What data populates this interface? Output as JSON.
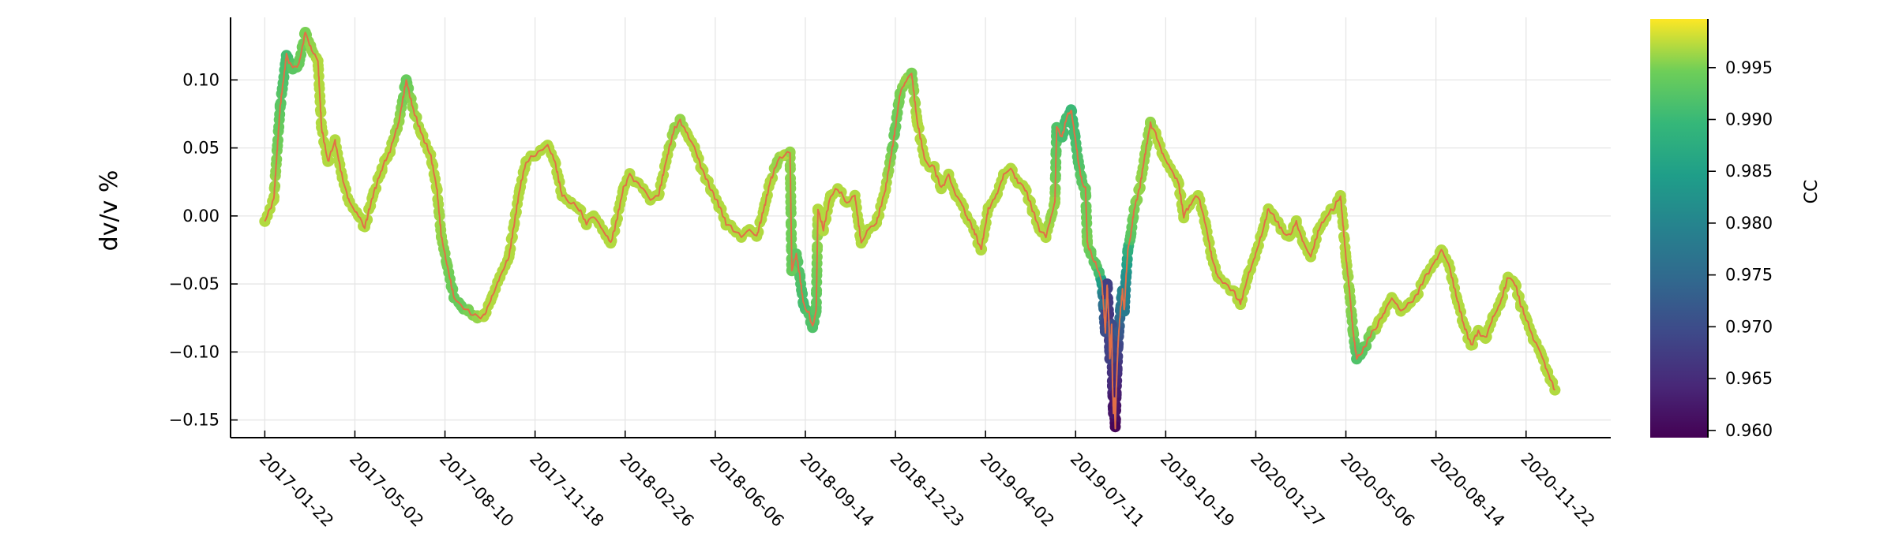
{
  "chart_data": {
    "type": "scatter",
    "title": "",
    "xlabel": "",
    "ylabel": "dv/v %",
    "x_tick_labels": [
      "2017-01-22",
      "2017-05-02",
      "2017-08-10",
      "2017-11-18",
      "2018-02-26",
      "2018-06-06",
      "2018-09-14",
      "2018-12-23",
      "2019-04-02",
      "2019-07-11",
      "2019-10-19",
      "2020-01-27",
      "2020-05-06",
      "2020-08-14",
      "2020-11-22"
    ],
    "x_range": [
      "2016-12-15",
      "2021-02-24"
    ],
    "y_ticks": [
      0.1,
      0.05,
      0.0,
      -0.05,
      -0.1,
      -0.15
    ],
    "y_tick_labels": [
      "0.10",
      "0.05",
      "0.00",
      "−0.05",
      "−0.10",
      "−0.15"
    ],
    "ylim": [
      -0.163,
      0.146
    ],
    "grid": true,
    "line_color": "#e26f46",
    "colorbar": {
      "label": "CC",
      "colormap": "viridis",
      "range": [
        0.9593,
        0.9997
      ],
      "ticks": [
        0.96,
        0.965,
        0.97,
        0.975,
        0.98,
        0.985,
        0.99,
        0.995
      ],
      "tick_labels": [
        "0.960",
        "0.965",
        "0.970",
        "0.975",
        "0.980",
        "0.985",
        "0.990",
        "0.995"
      ]
    },
    "series": [
      {
        "name": "dv/v",
        "points": [
          [
            "2017-01-22",
            -0.004,
            0.997
          ],
          [
            "2017-02-01",
            0.012,
            0.997
          ],
          [
            "2017-02-08",
            0.08,
            0.993
          ],
          [
            "2017-02-15",
            0.118,
            0.991
          ],
          [
            "2017-02-22",
            0.108,
            0.993
          ],
          [
            "2017-03-01",
            0.112,
            0.994
          ],
          [
            "2017-03-08",
            0.135,
            0.995
          ],
          [
            "2017-03-15",
            0.122,
            0.996
          ],
          [
            "2017-03-22",
            0.114,
            0.997
          ],
          [
            "2017-03-26",
            0.065,
            0.997
          ],
          [
            "2017-04-02",
            0.04,
            0.997
          ],
          [
            "2017-04-10",
            0.055,
            0.997
          ],
          [
            "2017-04-18",
            0.028,
            0.997
          ],
          [
            "2017-04-26",
            0.01,
            0.997
          ],
          [
            "2017-05-06",
            0.0,
            0.997
          ],
          [
            "2017-05-13",
            -0.008,
            0.997
          ],
          [
            "2017-05-22",
            0.015,
            0.997
          ],
          [
            "2017-06-01",
            0.035,
            0.997
          ],
          [
            "2017-06-10",
            0.048,
            0.997
          ],
          [
            "2017-06-20",
            0.07,
            0.996
          ],
          [
            "2017-06-28",
            0.1,
            0.994
          ],
          [
            "2017-07-05",
            0.08,
            0.996
          ],
          [
            "2017-07-15",
            0.06,
            0.997
          ],
          [
            "2017-07-25",
            0.045,
            0.997
          ],
          [
            "2017-08-01",
            0.02,
            0.997
          ],
          [
            "2017-08-06",
            -0.015,
            0.996
          ],
          [
            "2017-08-12",
            -0.035,
            0.995
          ],
          [
            "2017-08-20",
            -0.06,
            0.994
          ],
          [
            "2017-08-28",
            -0.066,
            0.994
          ],
          [
            "2017-09-05",
            -0.07,
            0.995
          ],
          [
            "2017-09-15",
            -0.075,
            0.996
          ],
          [
            "2017-09-22",
            -0.074,
            0.997
          ],
          [
            "2017-10-01",
            -0.06,
            0.997
          ],
          [
            "2017-10-10",
            -0.045,
            0.997
          ],
          [
            "2017-10-20",
            -0.03,
            0.997
          ],
          [
            "2017-10-26",
            -0.005,
            0.997
          ],
          [
            "2017-11-01",
            0.02,
            0.997
          ],
          [
            "2017-11-08",
            0.04,
            0.997
          ],
          [
            "2017-11-16",
            0.044,
            0.997
          ],
          [
            "2017-11-24",
            0.048,
            0.997
          ],
          [
            "2017-12-02",
            0.052,
            0.997
          ],
          [
            "2017-12-10",
            0.04,
            0.997
          ],
          [
            "2017-12-18",
            0.015,
            0.997
          ],
          [
            "2017-12-28",
            0.01,
            0.997
          ],
          [
            "2018-01-06",
            0.005,
            0.997
          ],
          [
            "2018-01-14",
            -0.005,
            0.997
          ],
          [
            "2018-01-22",
            0.0,
            0.997
          ],
          [
            "2018-02-01",
            -0.01,
            0.997
          ],
          [
            "2018-02-10",
            -0.02,
            0.997
          ],
          [
            "2018-02-16",
            -0.005,
            0.997
          ],
          [
            "2018-02-24",
            0.02,
            0.997
          ],
          [
            "2018-03-03",
            0.03,
            0.997
          ],
          [
            "2018-03-10",
            0.025,
            0.997
          ],
          [
            "2018-03-18",
            0.02,
            0.997
          ],
          [
            "2018-03-26",
            0.012,
            0.997
          ],
          [
            "2018-04-04",
            0.015,
            0.997
          ],
          [
            "2018-04-14",
            0.045,
            0.997
          ],
          [
            "2018-04-22",
            0.065,
            0.996
          ],
          [
            "2018-04-28",
            0.07,
            0.996
          ],
          [
            "2018-05-06",
            0.06,
            0.997
          ],
          [
            "2018-05-14",
            0.05,
            0.997
          ],
          [
            "2018-05-22",
            0.035,
            0.997
          ],
          [
            "2018-06-01",
            0.02,
            0.997
          ],
          [
            "2018-06-10",
            0.008,
            0.997
          ],
          [
            "2018-06-18",
            -0.005,
            0.997
          ],
          [
            "2018-06-26",
            -0.01,
            0.997
          ],
          [
            "2018-07-05",
            -0.015,
            0.997
          ],
          [
            "2018-07-14",
            -0.01,
            0.997
          ],
          [
            "2018-07-22",
            -0.015,
            0.997
          ],
          [
            "2018-07-30",
            0.005,
            0.997
          ],
          [
            "2018-08-06",
            0.025,
            0.997
          ],
          [
            "2018-08-14",
            0.04,
            0.996
          ],
          [
            "2018-08-22",
            0.045,
            0.997
          ],
          [
            "2018-08-28",
            0.047,
            0.996
          ],
          [
            "2018-08-30",
            -0.04,
            0.994
          ],
          [
            "2018-09-04",
            -0.028,
            0.993
          ],
          [
            "2018-09-08",
            -0.045,
            0.992
          ],
          [
            "2018-09-12",
            -0.065,
            0.991
          ],
          [
            "2018-09-18",
            -0.072,
            0.992
          ],
          [
            "2018-09-22",
            -0.082,
            0.992
          ],
          [
            "2018-09-26",
            -0.07,
            0.993
          ],
          [
            "2018-09-28",
            0.005,
            0.997
          ],
          [
            "2018-10-04",
            -0.01,
            0.997
          ],
          [
            "2018-10-12",
            0.015,
            0.997
          ],
          [
            "2018-10-20",
            0.02,
            0.997
          ],
          [
            "2018-10-30",
            0.01,
            0.997
          ],
          [
            "2018-11-08",
            0.015,
            0.997
          ],
          [
            "2018-11-15",
            -0.02,
            0.997
          ],
          [
            "2018-11-23",
            -0.01,
            0.997
          ],
          [
            "2018-12-02",
            -0.005,
            0.997
          ],
          [
            "2018-12-12",
            0.02,
            0.997
          ],
          [
            "2018-12-22",
            0.06,
            0.994
          ],
          [
            "2018-12-28",
            0.09,
            0.995
          ],
          [
            "2019-01-04",
            0.1,
            0.996
          ],
          [
            "2019-01-10",
            0.105,
            0.995
          ],
          [
            "2019-01-16",
            0.07,
            0.997
          ],
          [
            "2019-01-25",
            0.04,
            0.997
          ],
          [
            "2019-02-04",
            0.035,
            0.997
          ],
          [
            "2019-02-12",
            0.02,
            0.997
          ],
          [
            "2019-02-20",
            0.03,
            0.997
          ],
          [
            "2019-02-28",
            0.015,
            0.997
          ],
          [
            "2019-03-06",
            0.01,
            0.997
          ],
          [
            "2019-03-12",
            0.0,
            0.997
          ],
          [
            "2019-03-20",
            -0.01,
            0.997
          ],
          [
            "2019-03-28",
            -0.025,
            0.997
          ],
          [
            "2019-04-05",
            0.005,
            0.997
          ],
          [
            "2019-04-14",
            0.015,
            0.997
          ],
          [
            "2019-04-22",
            0.03,
            0.997
          ],
          [
            "2019-04-30",
            0.035,
            0.997
          ],
          [
            "2019-05-08",
            0.025,
            0.997
          ],
          [
            "2019-05-16",
            0.02,
            0.997
          ],
          [
            "2019-05-24",
            0.005,
            0.997
          ],
          [
            "2019-06-01",
            -0.01,
            0.997
          ],
          [
            "2019-06-08",
            -0.015,
            0.997
          ],
          [
            "2019-06-14",
            0.0,
            0.996
          ],
          [
            "2019-06-18",
            0.01,
            0.996
          ],
          [
            "2019-06-20",
            0.065,
            0.992
          ],
          [
            "2019-06-26",
            0.058,
            0.991
          ],
          [
            "2019-07-01",
            0.072,
            0.991
          ],
          [
            "2019-07-06",
            0.078,
            0.99
          ],
          [
            "2019-07-10",
            0.06,
            0.991
          ],
          [
            "2019-07-14",
            0.04,
            0.992
          ],
          [
            "2019-07-18",
            0.025,
            0.993
          ],
          [
            "2019-07-22",
            0.02,
            0.994
          ],
          [
            "2019-07-24",
            -0.02,
            0.995
          ],
          [
            "2019-07-28",
            -0.028,
            0.994
          ],
          [
            "2019-08-02",
            -0.035,
            0.993
          ],
          [
            "2019-08-06",
            -0.042,
            0.991
          ],
          [
            "2019-08-09",
            -0.048,
            0.985
          ],
          [
            "2019-08-11",
            -0.065,
            0.976
          ],
          [
            "2019-08-13",
            -0.085,
            0.97
          ],
          [
            "2019-08-15",
            -0.05,
            0.968
          ],
          [
            "2019-08-17",
            -0.078,
            0.966
          ],
          [
            "2019-08-18",
            -0.105,
            0.968
          ],
          [
            "2019-08-20",
            -0.08,
            0.97
          ],
          [
            "2019-08-21",
            -0.125,
            0.965
          ],
          [
            "2019-08-22",
            -0.145,
            0.962
          ],
          [
            "2019-08-23",
            -0.133,
            0.962
          ],
          [
            "2019-08-24",
            -0.155,
            0.96
          ],
          [
            "2019-08-25",
            -0.13,
            0.963
          ],
          [
            "2019-08-26",
            -0.112,
            0.966
          ],
          [
            "2019-08-27",
            -0.096,
            0.969
          ],
          [
            "2019-08-28",
            -0.085,
            0.972
          ],
          [
            "2019-08-30",
            -0.068,
            0.977
          ],
          [
            "2019-09-01",
            -0.055,
            0.98
          ],
          [
            "2019-09-03",
            -0.07,
            0.978
          ],
          [
            "2019-09-05",
            -0.045,
            0.982
          ],
          [
            "2019-09-07",
            -0.025,
            0.988
          ],
          [
            "2019-09-10",
            -0.015,
            0.993
          ],
          [
            "2019-09-14",
            0.005,
            0.995
          ],
          [
            "2019-09-20",
            0.02,
            0.996
          ],
          [
            "2019-09-26",
            0.045,
            0.996
          ],
          [
            "2019-10-02",
            0.068,
            0.996
          ],
          [
            "2019-10-08",
            0.06,
            0.997
          ],
          [
            "2019-10-16",
            0.045,
            0.997
          ],
          [
            "2019-10-24",
            0.035,
            0.997
          ],
          [
            "2019-11-02",
            0.025,
            0.997
          ],
          [
            "2019-11-08",
            0.0,
            0.997
          ],
          [
            "2019-11-16",
            0.01,
            0.997
          ],
          [
            "2019-11-24",
            0.015,
            0.997
          ],
          [
            "2019-12-02",
            -0.005,
            0.997
          ],
          [
            "2019-12-09",
            -0.03,
            0.997
          ],
          [
            "2019-12-16",
            -0.045,
            0.997
          ],
          [
            "2019-12-24",
            -0.05,
            0.997
          ],
          [
            "2020-01-02",
            -0.055,
            0.997
          ],
          [
            "2020-01-10",
            -0.065,
            0.997
          ],
          [
            "2020-01-18",
            -0.045,
            0.997
          ],
          [
            "2020-01-26",
            -0.03,
            0.997
          ],
          [
            "2020-02-04",
            -0.01,
            0.997
          ],
          [
            "2020-02-10",
            0.005,
            0.997
          ],
          [
            "2020-02-16",
            0.0,
            0.997
          ],
          [
            "2020-02-24",
            -0.01,
            0.997
          ],
          [
            "2020-03-04",
            -0.015,
            0.997
          ],
          [
            "2020-03-12",
            -0.005,
            0.997
          ],
          [
            "2020-03-20",
            -0.02,
            0.997
          ],
          [
            "2020-03-28",
            -0.03,
            0.997
          ],
          [
            "2020-04-06",
            -0.01,
            0.997
          ],
          [
            "2020-04-14",
            0.0,
            0.997
          ],
          [
            "2020-04-22",
            0.005,
            0.997
          ],
          [
            "2020-04-30",
            0.015,
            0.997
          ],
          [
            "2020-05-06",
            -0.03,
            0.997
          ],
          [
            "2020-05-10",
            -0.055,
            0.996
          ],
          [
            "2020-05-14",
            -0.085,
            0.995
          ],
          [
            "2020-05-18",
            -0.105,
            0.992
          ],
          [
            "2020-05-24",
            -0.1,
            0.993
          ],
          [
            "2020-06-02",
            -0.088,
            0.995
          ],
          [
            "2020-06-10",
            -0.08,
            0.997
          ],
          [
            "2020-06-18",
            -0.07,
            0.997
          ],
          [
            "2020-06-26",
            -0.06,
            0.997
          ],
          [
            "2020-07-06",
            -0.07,
            0.997
          ],
          [
            "2020-07-14",
            -0.065,
            0.997
          ],
          [
            "2020-07-22",
            -0.06,
            0.997
          ],
          [
            "2020-08-02",
            -0.045,
            0.997
          ],
          [
            "2020-08-12",
            -0.035,
            0.997
          ],
          [
            "2020-08-20",
            -0.025,
            0.997
          ],
          [
            "2020-08-28",
            -0.035,
            0.997
          ],
          [
            "2020-09-06",
            -0.06,
            0.997
          ],
          [
            "2020-09-14",
            -0.08,
            0.997
          ],
          [
            "2020-09-22",
            -0.095,
            0.997
          ],
          [
            "2020-09-30",
            -0.085,
            0.997
          ],
          [
            "2020-10-08",
            -0.09,
            0.997
          ],
          [
            "2020-10-16",
            -0.075,
            0.997
          ],
          [
            "2020-10-24",
            -0.065,
            0.997
          ],
          [
            "2020-11-02",
            -0.045,
            0.997
          ],
          [
            "2020-11-10",
            -0.05,
            0.997
          ],
          [
            "2020-11-16",
            -0.065,
            0.997
          ],
          [
            "2020-11-22",
            -0.075,
            0.997
          ],
          [
            "2020-11-30",
            -0.09,
            0.997
          ],
          [
            "2020-12-08",
            -0.1,
            0.997
          ],
          [
            "2020-12-16",
            -0.115,
            0.997
          ],
          [
            "2020-12-24",
            -0.128,
            0.997
          ]
        ]
      }
    ]
  }
}
